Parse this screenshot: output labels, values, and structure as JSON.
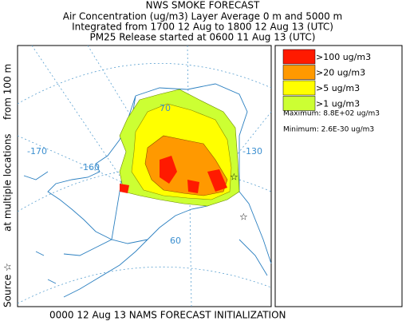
{
  "header": {
    "title": "NWS SMOKE FORECAST",
    "lines": [
      "Air Concentration (ug/m3) Layer Average    0 m and  5000 m",
      "Integrated from 1700 12 Aug to 1800 12 Aug 13 (UTC)",
      "PM25 Release started at 0600 11 Aug 13 (UTC)"
    ]
  },
  "side_label": [
    "Source ☆",
    "at multiple locations",
    "from   100 m"
  ],
  "map": {
    "grid_labels": [
      "70",
      "-170",
      "-160",
      "-130",
      "60"
    ]
  },
  "legend": {
    "entries": [
      {
        "label": ">100 ug/m3",
        "color": "#ff1a00"
      },
      {
        "label": ">20 ug/m3",
        "color": "#ff9900"
      },
      {
        "label": ">5 ug/m3",
        "color": "#ffff00"
      },
      {
        "label": ">1 ug/m3",
        "color": "#ccff33"
      }
    ],
    "maximum": "Maximum: 8.8E+02 ug/m3",
    "minimum": "Minimum: 2.6E-30 ug/m3"
  },
  "footer": "0000 12 Aug 13 NAMS FORECAST INITIALIZATION"
}
